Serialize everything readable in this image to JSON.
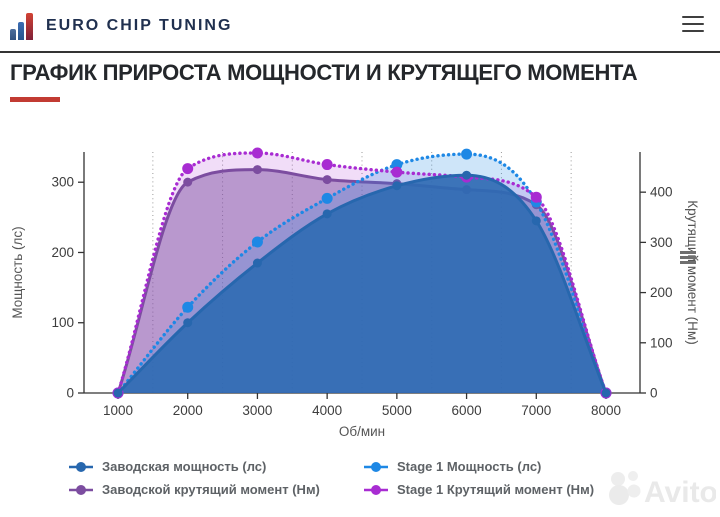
{
  "header": {
    "brand": "EURO CHIP TUNING",
    "menu_icon": "hamburger-icon"
  },
  "page": {
    "title": "ГРАФИК ПРИРОСТА МОЩНОСТИ И КРУТЯЩЕГО МОМЕНТА",
    "accent_color": "#c23b32"
  },
  "watermark": {
    "text": "Avito"
  },
  "chart_data": {
    "type": "line",
    "x": [
      1000,
      2000,
      3000,
      4000,
      5000,
      6000,
      7000,
      8000
    ],
    "x_axis": {
      "title": "Об/мин",
      "ticks": [
        1000,
        2000,
        3000,
        4000,
        5000,
        6000,
        7000,
        8000
      ],
      "minor_gridlines": [
        1500,
        2500,
        3500,
        4500,
        5500,
        6500,
        7500
      ]
    },
    "left_axis": {
      "title": "Мощность (лс)",
      "ticks": [
        0,
        100,
        200,
        300
      ],
      "max": 343
    },
    "right_axis": {
      "title": "Крутящий момент (Нм)",
      "ticks": [
        0,
        100,
        200,
        300,
        400
      ],
      "max": 480
    },
    "series": [
      {
        "name": "Заводская мощность (лс)",
        "axis": "left",
        "line_style": "solid",
        "color": "#2767ae",
        "fill": "#2e6ab2",
        "fill_opacity": 0.9,
        "values": [
          0,
          100,
          185,
          255,
          295,
          310,
          245,
          0
        ]
      },
      {
        "name": "Stage 1 Мощность (лс)",
        "axis": "left",
        "line_style": "dotted",
        "color": "#1e88e5",
        "fill": "#1e88e5",
        "fill_opacity": 0.22,
        "values": [
          0,
          122,
          215,
          277,
          325,
          340,
          272,
          0
        ]
      },
      {
        "name": "Заводской крутящий момент (Нм)",
        "axis": "right",
        "line_style": "solid",
        "color": "#7c4da0",
        "fill": "#7c4da0",
        "fill_opacity": 0.48,
        "values": [
          0,
          420,
          445,
          425,
          417,
          405,
          375,
          0
        ]
      },
      {
        "name": "Stage 1 Крутящий момент (Нм)",
        "axis": "right",
        "line_style": "dotted",
        "color": "#a82cd2",
        "fill": "#a82cd2",
        "fill_opacity": 0.16,
        "values": [
          0,
          447,
          478,
          455,
          440,
          430,
          390,
          0
        ]
      }
    ],
    "legend_layout": {
      "column_1": [
        0,
        2
      ],
      "column_2": [
        1,
        3
      ]
    },
    "colors": {
      "axis_line": "#333333",
      "tick_label": "#3d3d3d",
      "axis_title": "#555555",
      "gridline": "#9a9a9a"
    }
  }
}
